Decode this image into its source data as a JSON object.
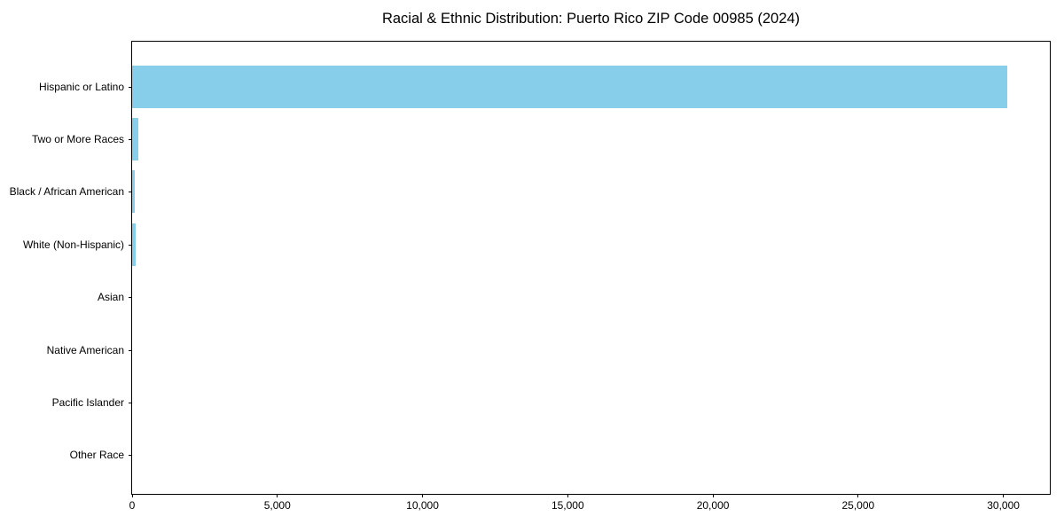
{
  "chart_data": {
    "type": "bar",
    "orientation": "horizontal",
    "title": "Racial & Ethnic Distribution: Puerto Rico ZIP Code 00985 (2024)",
    "categories": [
      "Hispanic or Latino",
      "Two or More Races",
      "Black / African American",
      "White (Non-Hispanic)",
      "Asian",
      "Native American",
      "Pacific Islander",
      "Other Race"
    ],
    "values": [
      30120,
      200,
      90,
      110,
      0,
      0,
      0,
      0
    ],
    "xlabel": "",
    "ylabel": "",
    "xlim": [
      0,
      31600
    ],
    "x_ticks": [
      0,
      5000,
      10000,
      15000,
      20000,
      25000,
      30000
    ],
    "x_tick_labels": [
      "0",
      "5,000",
      "10,000",
      "15,000",
      "20,000",
      "25,000",
      "30,000"
    ],
    "bar_color": "#87CEEB",
    "axis_color": "#000000",
    "grid": false,
    "legend": null
  }
}
